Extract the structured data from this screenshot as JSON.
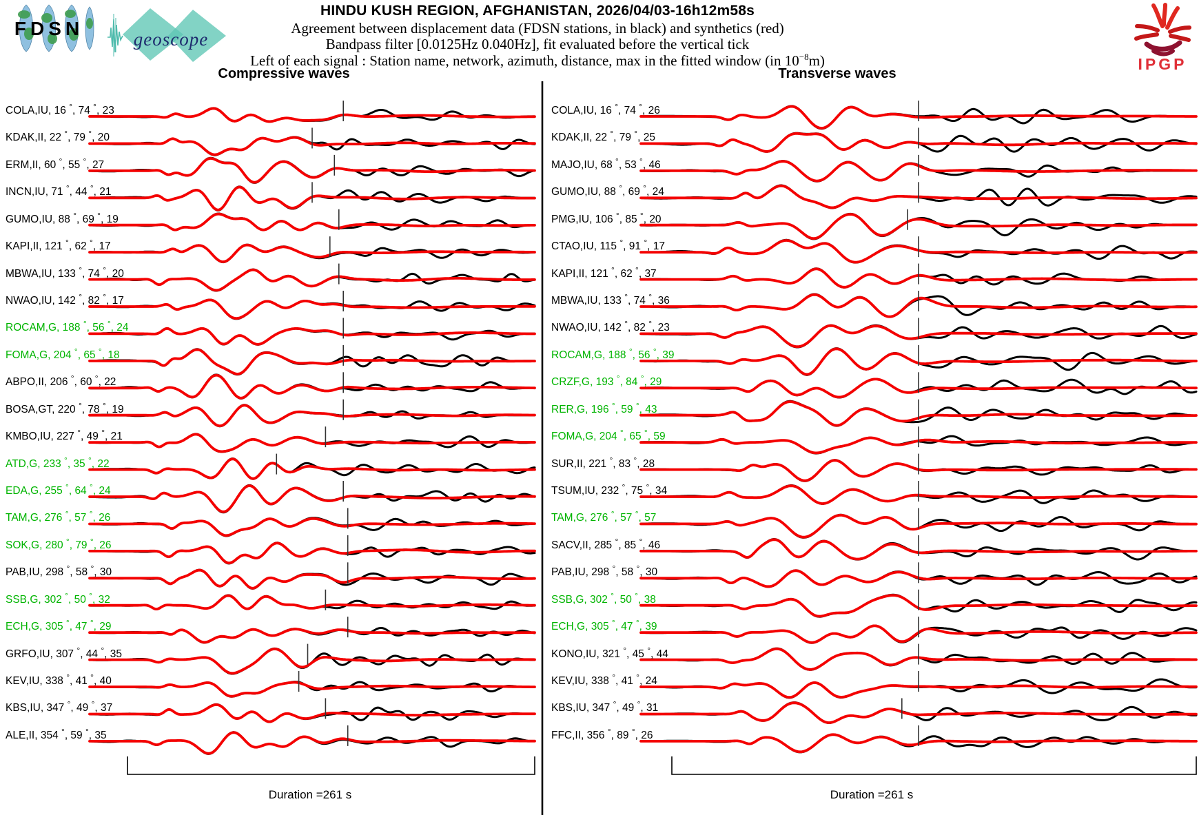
{
  "header": {
    "title": "HINDU KUSH REGION, AFGHANISTAN, 2026/04/03-16h12m58s",
    "line2": "Agreement between displacement data (FDSN stations, in black) and synthetics (red)",
    "line3": "Bandpass filter [0.0125Hz 0.040Hz], fit evaluated before the vertical tick",
    "line4_pre": "Left of each signal : Station name, network, azimuth, distance, max in the fitted window (in 10",
    "line4_sup": "−8",
    "line4_post": "m)"
  },
  "logos": {
    "fdsn": "FDSN",
    "geoscope": "geoscope",
    "ipgp": "IPGP"
  },
  "colors": {
    "data_trace": "#000000",
    "synthetic_trace": "#f40000",
    "geoscope_label": "#00b400",
    "default_label": "#000000",
    "tick": "#333333"
  },
  "chart_data": {
    "type": "line",
    "title": "HINDU KUSH REGION, AFGHANISTAN, 2026/04/03-16h12m58s",
    "description": "Observed displacement seismograms (black) overlaid with synthetic seismograms (red). Each station label gives: station name, network, azimuth (deg), distance (deg), max amplitude in the fitted window (1e-8 m). Fit evaluated before the vertical tick on each trace.",
    "duration_s": 261,
    "legend": [
      {
        "label": "displacement data (FDSN stations)",
        "color": "#000000"
      },
      {
        "label": "synthetics",
        "color": "#f40000"
      }
    ],
    "panels": [
      {
        "title": "Compressive waves",
        "duration_label": "Duration =261 s",
        "stations": [
          {
            "station": "COLA",
            "network": "IU",
            "azimuth": 16,
            "distance": 74,
            "max": 23,
            "green": false,
            "tick": 0.57
          },
          {
            "station": "KDAK",
            "network": "II",
            "azimuth": 22,
            "distance": 79,
            "max": 20,
            "green": false,
            "tick": 0.5
          },
          {
            "station": "ERM",
            "network": "II",
            "azimuth": 60,
            "distance": 55,
            "max": 27,
            "green": false,
            "tick": 0.55
          },
          {
            "station": "INCN",
            "network": "IU",
            "azimuth": 71,
            "distance": 44,
            "max": 21,
            "green": false,
            "tick": 0.5
          },
          {
            "station": "GUMO",
            "network": "IU",
            "azimuth": 88,
            "distance": 69,
            "max": 19,
            "green": false,
            "tick": 0.56
          },
          {
            "station": "KAPI",
            "network": "II",
            "azimuth": 121,
            "distance": 62,
            "max": 17,
            "green": false,
            "tick": 0.54
          },
          {
            "station": "MBWA",
            "network": "IU",
            "azimuth": 133,
            "distance": 74,
            "max": 20,
            "green": false,
            "tick": 0.56
          },
          {
            "station": "NWAO",
            "network": "IU",
            "azimuth": 142,
            "distance": 82,
            "max": 17,
            "green": false,
            "tick": 0.57
          },
          {
            "station": "ROCAM",
            "network": "G",
            "azimuth": 188,
            "distance": 56,
            "max": 24,
            "green": true,
            "tick": 0.57
          },
          {
            "station": "FOMA",
            "network": "G",
            "azimuth": 204,
            "distance": 65,
            "max": 18,
            "green": true,
            "tick": 0.57
          },
          {
            "station": "ABPO",
            "network": "II",
            "azimuth": 206,
            "distance": 60,
            "max": 22,
            "green": false,
            "tick": 0.57
          },
          {
            "station": "BOSA",
            "network": "GT",
            "azimuth": 220,
            "distance": 78,
            "max": 19,
            "green": false,
            "tick": 0.57
          },
          {
            "station": "KMBO",
            "network": "IU",
            "azimuth": 227,
            "distance": 49,
            "max": 21,
            "green": false,
            "tick": 0.53
          },
          {
            "station": "ATD",
            "network": "G",
            "azimuth": 233,
            "distance": 35,
            "max": 22,
            "green": true,
            "tick": 0.42
          },
          {
            "station": "EDA",
            "network": "G",
            "azimuth": 255,
            "distance": 64,
            "max": 24,
            "green": true,
            "tick": 0.57
          },
          {
            "station": "TAM",
            "network": "G",
            "azimuth": 276,
            "distance": 57,
            "max": 26,
            "green": true,
            "tick": 0.58
          },
          {
            "station": "SOK",
            "network": "G",
            "azimuth": 280,
            "distance": 79,
            "max": 26,
            "green": true,
            "tick": 0.58
          },
          {
            "station": "PAB",
            "network": "IU",
            "azimuth": 298,
            "distance": 58,
            "max": 30,
            "green": false,
            "tick": 0.58
          },
          {
            "station": "SSB",
            "network": "G",
            "azimuth": 302,
            "distance": 50,
            "max": 32,
            "green": true,
            "tick": 0.53
          },
          {
            "station": "ECH",
            "network": "G",
            "azimuth": 305,
            "distance": 47,
            "max": 29,
            "green": true,
            "tick": 0.58
          },
          {
            "station": "GRFO",
            "network": "IU",
            "azimuth": 307,
            "distance": 44,
            "max": 35,
            "green": false,
            "tick": 0.49
          },
          {
            "station": "KEV",
            "network": "IU",
            "azimuth": 338,
            "distance": 41,
            "max": 40,
            "green": false,
            "tick": 0.47
          },
          {
            "station": "KBS",
            "network": "IU",
            "azimuth": 347,
            "distance": 49,
            "max": 37,
            "green": false,
            "tick": 0.53
          },
          {
            "station": "ALE",
            "network": "II",
            "azimuth": 354,
            "distance": 59,
            "max": 35,
            "green": false,
            "tick": 0.58
          }
        ]
      },
      {
        "title": "Transverse waves",
        "duration_label": "Duration =261 s",
        "stations": [
          {
            "station": "COLA",
            "network": "IU",
            "azimuth": 16,
            "distance": 74,
            "max": 26,
            "green": false,
            "tick": 0.5
          },
          {
            "station": "KDAK",
            "network": "II",
            "azimuth": 22,
            "distance": 79,
            "max": 25,
            "green": false,
            "tick": 0.5
          },
          {
            "station": "MAJO",
            "network": "IU",
            "azimuth": 68,
            "distance": 53,
            "max": 46,
            "green": false,
            "tick": 0.5
          },
          {
            "station": "GUMO",
            "network": "IU",
            "azimuth": 88,
            "distance": 69,
            "max": 24,
            "green": false,
            "tick": 0.5
          },
          {
            "station": "PMG",
            "network": "IU",
            "azimuth": 106,
            "distance": 85,
            "max": 20,
            "green": false,
            "tick": 0.48
          },
          {
            "station": "CTAO",
            "network": "IU",
            "azimuth": 115,
            "distance": 91,
            "max": 17,
            "green": false,
            "tick": 0.5
          },
          {
            "station": "KAPI",
            "network": "II",
            "azimuth": 121,
            "distance": 62,
            "max": 37,
            "green": false,
            "tick": 0.5
          },
          {
            "station": "MBWA",
            "network": "IU",
            "azimuth": 133,
            "distance": 74,
            "max": 36,
            "green": false,
            "tick": 0.5
          },
          {
            "station": "NWAO",
            "network": "IU",
            "azimuth": 142,
            "distance": 82,
            "max": 23,
            "green": false,
            "tick": 0.5
          },
          {
            "station": "ROCAM",
            "network": "G",
            "azimuth": 188,
            "distance": 56,
            "max": 39,
            "green": true,
            "tick": 0.5
          },
          {
            "station": "CRZF",
            "network": "G",
            "azimuth": 193,
            "distance": 84,
            "max": 29,
            "green": true,
            "tick": 0.5
          },
          {
            "station": "RER",
            "network": "G",
            "azimuth": 196,
            "distance": 59,
            "max": 43,
            "green": true,
            "tick": 0.5
          },
          {
            "station": "FOMA",
            "network": "G",
            "azimuth": 204,
            "distance": 65,
            "max": 59,
            "green": true,
            "tick": 0.5
          },
          {
            "station": "SUR",
            "network": "II",
            "azimuth": 221,
            "distance": 83,
            "max": 28,
            "green": false,
            "tick": 0.5
          },
          {
            "station": "TSUM",
            "network": "IU",
            "azimuth": 232,
            "distance": 75,
            "max": 34,
            "green": false,
            "tick": 0.5
          },
          {
            "station": "TAM",
            "network": "G",
            "azimuth": 276,
            "distance": 57,
            "max": 57,
            "green": true,
            "tick": 0.5
          },
          {
            "station": "SACV",
            "network": "II",
            "azimuth": 285,
            "distance": 85,
            "max": 46,
            "green": false,
            "tick": 0.5
          },
          {
            "station": "PAB",
            "network": "IU",
            "azimuth": 298,
            "distance": 58,
            "max": 30,
            "green": false,
            "tick": 0.5
          },
          {
            "station": "SSB",
            "network": "G",
            "azimuth": 302,
            "distance": 50,
            "max": 38,
            "green": true,
            "tick": 0.5
          },
          {
            "station": "ECH",
            "network": "G",
            "azimuth": 305,
            "distance": 47,
            "max": 39,
            "green": true,
            "tick": 0.5
          },
          {
            "station": "KONO",
            "network": "IU",
            "azimuth": 321,
            "distance": 45,
            "max": 44,
            "green": false,
            "tick": 0.5
          },
          {
            "station": "KEV",
            "network": "IU",
            "azimuth": 338,
            "distance": 41,
            "max": 24,
            "green": false,
            "tick": 0.5
          },
          {
            "station": "KBS",
            "network": "IU",
            "azimuth": 347,
            "distance": 49,
            "max": 31,
            "green": false,
            "tick": 0.47
          },
          {
            "station": "FFC",
            "network": "II",
            "azimuth": 356,
            "distance": 89,
            "max": 26,
            "green": false,
            "tick": 0.5
          }
        ]
      }
    ]
  }
}
